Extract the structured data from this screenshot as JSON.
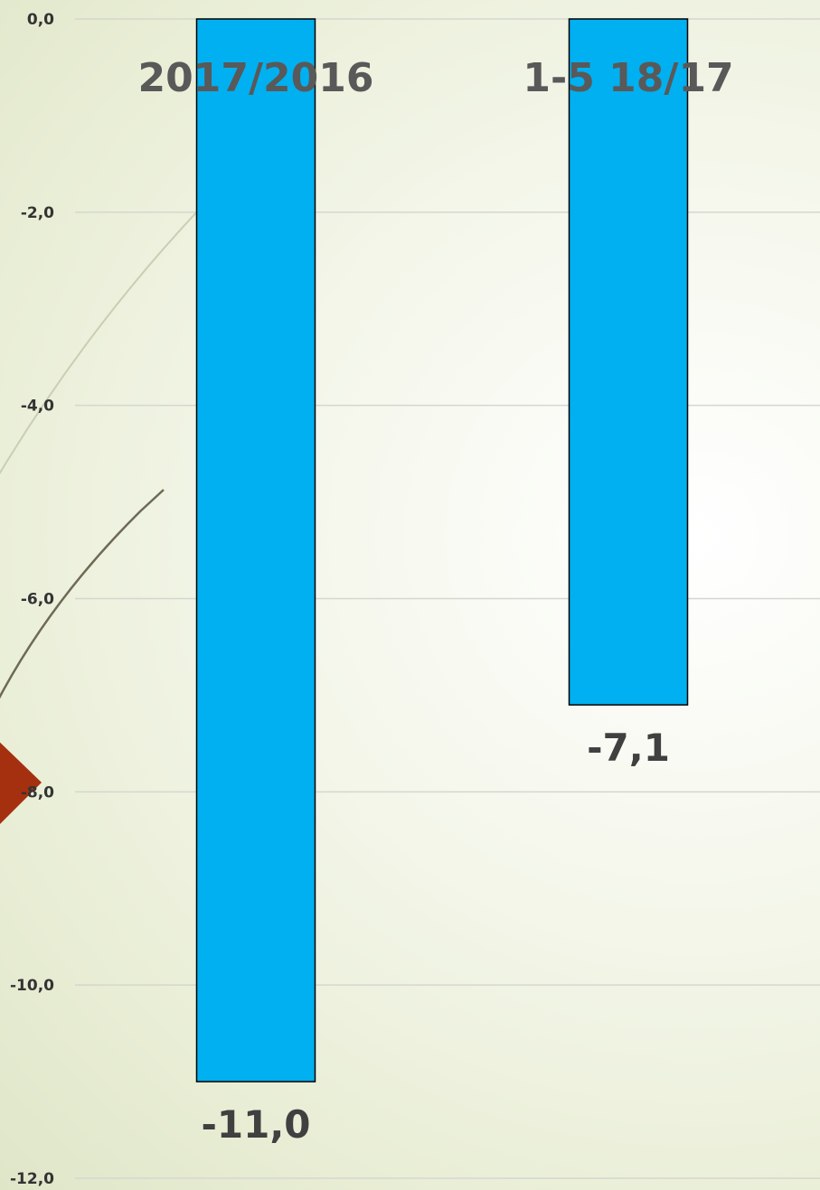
{
  "chart_data": {
    "type": "bar",
    "categories": [
      "2017/2016",
      "1-5 18/17"
    ],
    "values": [
      -11.0,
      -7.1
    ],
    "value_labels": [
      "-11,0",
      "-7,1"
    ],
    "title": "",
    "xlabel": "",
    "ylabel": "",
    "ylim": [
      -12.0,
      0.0
    ],
    "yticks": [
      0.0,
      -2.0,
      -4.0,
      -6.0,
      -8.0,
      -10.0,
      -12.0
    ],
    "ytick_labels": [
      "0,0",
      "-2,0",
      "-4,0",
      "-6,0",
      "-8,0",
      "-10,0",
      "-12,0"
    ],
    "grid": true,
    "legend": "none",
    "bar_color": "#00b0f0",
    "bar_edge_color": "#000000",
    "decoration_accent_color": "#a5300f"
  }
}
